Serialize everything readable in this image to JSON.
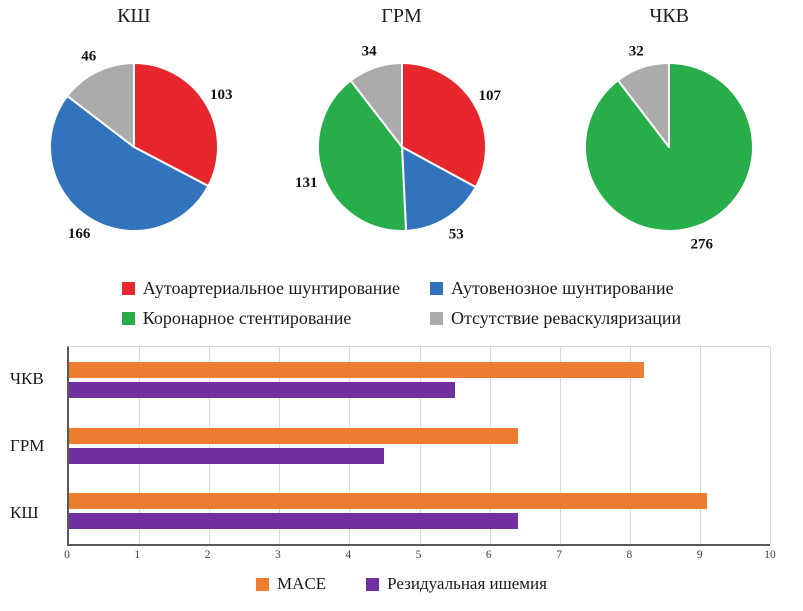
{
  "colors": {
    "autoarterial_red": "#e8272d",
    "autovenous_blue": "#3273bd",
    "stenting_green": "#27ae4b",
    "no_revasc_gray": "#ababab",
    "mace_orange": "#ed7d31",
    "ischemia_purple": "#7030a0",
    "gridline": "#d9d9d9",
    "axis": "#595959"
  },
  "pie_legend": [
    {
      "label": "Аутоартериальное шунтирование",
      "color": "#e8272d"
    },
    {
      "label": "Аутовенозное шунтирование",
      "color": "#3273bd"
    },
    {
      "label": "Коронарное стентирование",
      "color": "#27ae4b"
    },
    {
      "label": "Отсутствие реваскуляризации",
      "color": "#ababab"
    }
  ],
  "chart_data": [
    {
      "type": "pie",
      "title": "КШ",
      "slices": [
        {
          "label": "Аутоартериальное шунтирование",
          "value": 103,
          "color": "#e8272d"
        },
        {
          "label": "Аутовенозное шунтирование",
          "value": 166,
          "color": "#3273bd"
        },
        {
          "label": "Отсутствие реваскуляризации",
          "value": 46,
          "color": "#ababab"
        }
      ]
    },
    {
      "type": "pie",
      "title": "ГРМ",
      "slices": [
        {
          "label": "Аутоартериальное шунтирование",
          "value": 107,
          "color": "#e8272d"
        },
        {
          "label": "Аутовенозное шунтирование",
          "value": 53,
          "color": "#3273bd"
        },
        {
          "label": "Коронарное стентирование",
          "value": 131,
          "color": "#27ae4b"
        },
        {
          "label": "Отсутствие реваскуляризации",
          "value": 34,
          "color": "#ababab"
        }
      ]
    },
    {
      "type": "pie",
      "title": "ЧКВ",
      "slices": [
        {
          "label": "Коронарное стентирование",
          "value": 276,
          "color": "#27ae4b"
        },
        {
          "label": "Отсутствие реваскуляризации",
          "value": 32,
          "color": "#ababab"
        }
      ]
    },
    {
      "type": "bar",
      "orientation": "horizontal",
      "categories": [
        "ЧКВ",
        "ГРМ",
        "КШ"
      ],
      "series": [
        {
          "name": "MACE",
          "color": "#ed7d31",
          "values": [
            8.2,
            6.4,
            9.1
          ]
        },
        {
          "name": "Резидуальная ишемия",
          "color": "#7030a0",
          "values": [
            5.5,
            4.5,
            6.4
          ]
        }
      ],
      "xlim": [
        0,
        10
      ],
      "xticks": [
        0,
        1,
        2,
        3,
        4,
        5,
        6,
        7,
        8,
        9,
        10
      ],
      "grid": true,
      "legend_position": "bottom"
    }
  ]
}
